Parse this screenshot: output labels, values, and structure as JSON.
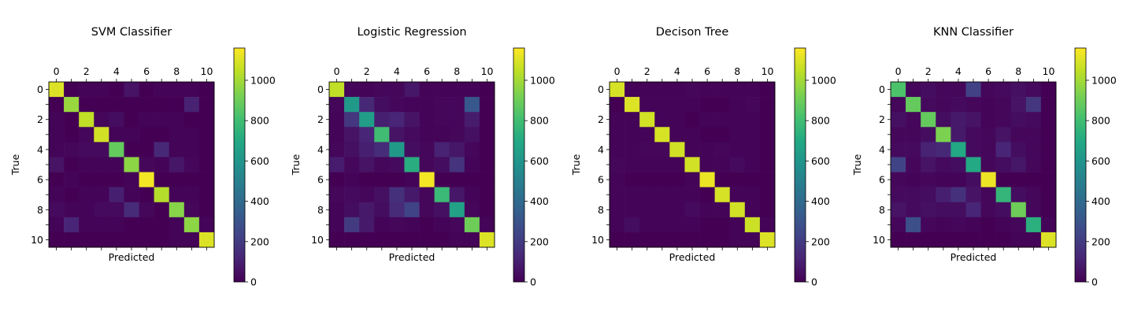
{
  "chart_data": [
    {
      "type": "heatmap",
      "title": "SVM Classifier",
      "xlabel": "Predicted",
      "ylabel": "True",
      "x_ticks": [
        "0",
        "2",
        "4",
        "6",
        "8",
        "10"
      ],
      "y_ticks": [
        "0",
        "2",
        "4",
        "6",
        "8",
        "10"
      ],
      "colorbar": {
        "ticks": [
          "0",
          "200",
          "400",
          "600",
          "800",
          "1000"
        ],
        "range": [
          0,
          1160
        ]
      },
      "matrix": [
        [
          1100,
          0,
          10,
          10,
          0,
          60,
          0,
          10,
          10,
          10,
          0
        ],
        [
          0,
          980,
          0,
          0,
          0,
          0,
          0,
          0,
          0,
          110,
          0
        ],
        [
          10,
          0,
          1050,
          20,
          40,
          0,
          10,
          10,
          10,
          0,
          0
        ],
        [
          10,
          0,
          20,
          1080,
          10,
          10,
          0,
          0,
          10,
          10,
          0
        ],
        [
          10,
          20,
          30,
          30,
          880,
          0,
          0,
          130,
          10,
          10,
          0
        ],
        [
          60,
          0,
          10,
          10,
          10,
          960,
          20,
          10,
          70,
          20,
          0
        ],
        [
          0,
          10,
          0,
          0,
          0,
          10,
          1140,
          0,
          0,
          0,
          0
        ],
        [
          10,
          0,
          10,
          10,
          100,
          10,
          0,
          1030,
          10,
          10,
          0
        ],
        [
          30,
          10,
          10,
          30,
          30,
          140,
          20,
          0,
          950,
          20,
          0
        ],
        [
          10,
          120,
          10,
          10,
          10,
          0,
          0,
          0,
          10,
          960,
          10
        ],
        [
          0,
          0,
          0,
          0,
          0,
          0,
          0,
          0,
          10,
          10,
          1100
        ]
      ]
    },
    {
      "type": "heatmap",
      "title": "Logistic Regression",
      "xlabel": "Predicted",
      "ylabel": "True",
      "x_ticks": [
        "0",
        "2",
        "4",
        "6",
        "8",
        "10"
      ],
      "y_ticks": [
        "0",
        "2",
        "4",
        "6",
        "8",
        "10"
      ],
      "colorbar": {
        "ticks": [
          "0",
          "200",
          "400",
          "600",
          "800",
          "1000"
        ],
        "range": [
          0,
          1160
        ]
      },
      "matrix": [
        [
          1050,
          20,
          10,
          20,
          20,
          70,
          10,
          10,
          10,
          10,
          0
        ],
        [
          20,
          620,
          130,
          40,
          20,
          10,
          10,
          20,
          20,
          320,
          0
        ],
        [
          10,
          180,
          640,
          100,
          120,
          60,
          10,
          20,
          20,
          90,
          0
        ],
        [
          10,
          60,
          120,
          800,
          60,
          30,
          10,
          10,
          20,
          50,
          0
        ],
        [
          20,
          50,
          100,
          150,
          620,
          40,
          20,
          110,
          70,
          20,
          0
        ],
        [
          90,
          20,
          60,
          20,
          30,
          720,
          20,
          40,
          170,
          10,
          0
        ],
        [
          0,
          10,
          0,
          0,
          0,
          10,
          1140,
          0,
          0,
          0,
          0
        ],
        [
          20,
          30,
          20,
          50,
          160,
          80,
          20,
          780,
          70,
          10,
          0
        ],
        [
          10,
          40,
          80,
          40,
          140,
          230,
          20,
          50,
          660,
          20,
          0
        ],
        [
          10,
          200,
          80,
          10,
          20,
          10,
          0,
          10,
          20,
          900,
          10
        ],
        [
          0,
          0,
          0,
          0,
          0,
          0,
          0,
          0,
          10,
          10,
          1100
        ]
      ]
    },
    {
      "type": "heatmap",
      "title": "Decison Tree",
      "xlabel": "Predicted",
      "ylabel": "True",
      "x_ticks": [
        "0",
        "2",
        "4",
        "6",
        "8",
        "10"
      ],
      "y_ticks": [
        "0",
        "2",
        "4",
        "6",
        "8",
        "10"
      ],
      "colorbar": {
        "ticks": [
          "0",
          "200",
          "400",
          "600",
          "800",
          "1000"
        ],
        "range": [
          0,
          1160
        ]
      },
      "matrix": [
        [
          1090,
          10,
          10,
          10,
          10,
          20,
          10,
          10,
          10,
          10,
          0
        ],
        [
          0,
          1100,
          10,
          10,
          10,
          10,
          0,
          0,
          10,
          20,
          0
        ],
        [
          10,
          10,
          1080,
          10,
          10,
          0,
          10,
          10,
          10,
          10,
          0
        ],
        [
          10,
          10,
          10,
          1090,
          10,
          10,
          0,
          0,
          10,
          10,
          0
        ],
        [
          10,
          10,
          20,
          20,
          1080,
          10,
          10,
          20,
          10,
          10,
          0
        ],
        [
          20,
          10,
          10,
          10,
          10,
          1080,
          10,
          10,
          30,
          10,
          0
        ],
        [
          10,
          0,
          0,
          0,
          0,
          10,
          1130,
          0,
          0,
          0,
          0
        ],
        [
          10,
          10,
          10,
          10,
          10,
          10,
          0,
          1090,
          10,
          10,
          0
        ],
        [
          10,
          10,
          10,
          10,
          10,
          30,
          10,
          10,
          1080,
          10,
          0
        ],
        [
          10,
          40,
          10,
          10,
          10,
          10,
          0,
          0,
          10,
          1070,
          10
        ],
        [
          0,
          0,
          0,
          0,
          0,
          0,
          0,
          0,
          10,
          10,
          1100
        ]
      ]
    },
    {
      "type": "heatmap",
      "title": "KNN Classifier",
      "xlabel": "Predicted",
      "ylabel": "True",
      "x_ticks": [
        "0",
        "2",
        "4",
        "6",
        "8",
        "10"
      ],
      "y_ticks": [
        "0",
        "2",
        "4",
        "6",
        "8",
        "10"
      ],
      "colorbar": {
        "ticks": [
          "0",
          "200",
          "400",
          "600",
          "800",
          "1000"
        ],
        "range": [
          0,
          1160
        ]
      },
      "matrix": [
        [
          830,
          20,
          40,
          20,
          20,
          220,
          20,
          30,
          50,
          30,
          0
        ],
        [
          20,
          880,
          30,
          20,
          30,
          20,
          10,
          20,
          60,
          180,
          0
        ],
        [
          50,
          20,
          880,
          40,
          80,
          60,
          10,
          20,
          40,
          30,
          0
        ],
        [
          20,
          20,
          40,
          930,
          80,
          30,
          20,
          60,
          20,
          20,
          0
        ],
        [
          30,
          30,
          110,
          130,
          700,
          30,
          20,
          120,
          40,
          20,
          0
        ],
        [
          230,
          20,
          60,
          30,
          40,
          700,
          20,
          40,
          70,
          20,
          0
        ],
        [
          20,
          10,
          20,
          10,
          10,
          40,
          1130,
          0,
          0,
          0,
          0
        ],
        [
          30,
          30,
          40,
          100,
          160,
          60,
          20,
          760,
          40,
          20,
          0
        ],
        [
          60,
          30,
          50,
          40,
          40,
          120,
          20,
          40,
          900,
          20,
          0
        ],
        [
          20,
          280,
          20,
          10,
          20,
          10,
          0,
          10,
          20,
          730,
          10
        ],
        [
          0,
          0,
          0,
          0,
          0,
          0,
          0,
          0,
          10,
          10,
          1100
        ]
      ]
    }
  ],
  "colors": {
    "viridis": [
      "#440154",
      "#482475",
      "#414487",
      "#355f8d",
      "#2a788e",
      "#21918c",
      "#22a884",
      "#44bf70",
      "#7ad151",
      "#bddf26",
      "#fde725"
    ]
  }
}
